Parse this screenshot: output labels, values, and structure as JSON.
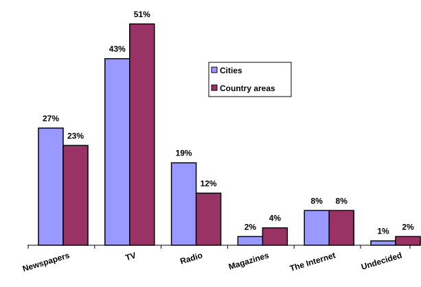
{
  "chart_data": {
    "type": "bar",
    "title": "",
    "xlabel": "",
    "ylabel": "",
    "ylim": [
      0,
      51
    ],
    "grid": false,
    "legend_position": "top-right",
    "categories": [
      "Newspapers",
      "TV",
      "Radio",
      "Magazines",
      "The Internet",
      "Undecided"
    ],
    "series": [
      {
        "name": "Cities",
        "color": "#9999ff",
        "values": [
          27,
          43,
          19,
          2,
          8,
          1
        ],
        "labels": [
          "27%",
          "43%",
          "19%",
          "2%",
          "8%",
          "1%"
        ]
      },
      {
        "name": "Country areas",
        "color": "#993366",
        "values": [
          23,
          51,
          12,
          4,
          8,
          2
        ],
        "labels": [
          "23%",
          "51%",
          "12%",
          "4%",
          "8%",
          "2%"
        ]
      }
    ]
  }
}
